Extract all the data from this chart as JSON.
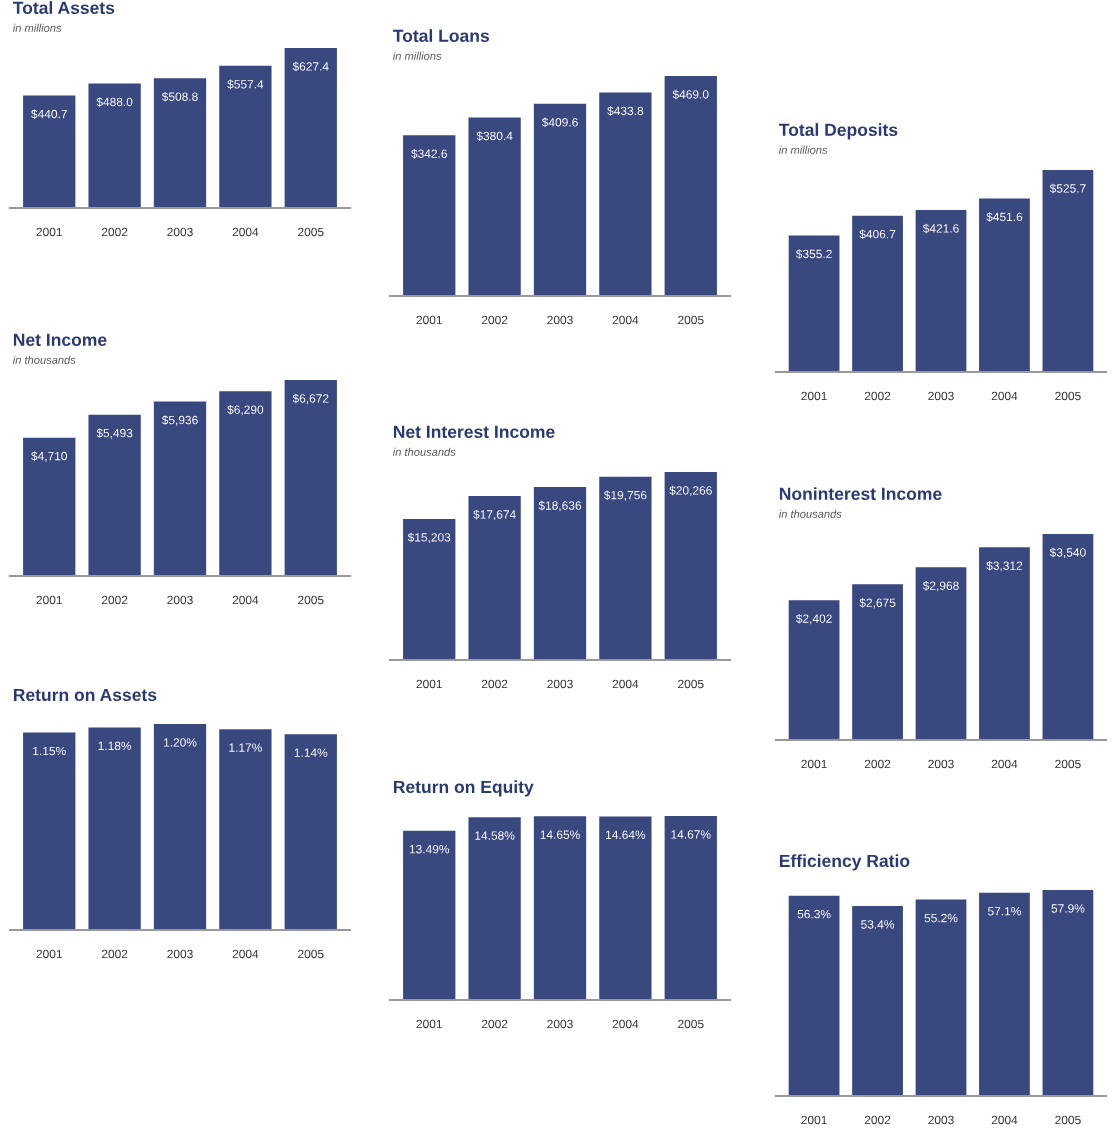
{
  "chart_data": [
    {
      "type": "bar",
      "title": "Total Assets",
      "subtitle": "in millions",
      "categories": [
        "2001",
        "2002",
        "2003",
        "2004",
        "2005"
      ],
      "values": [
        440.7,
        488.0,
        508.8,
        557.4,
        627.4
      ],
      "value_labels": [
        "$440.7",
        "$488.0",
        "$508.8",
        "$557.4",
        "$627.4"
      ],
      "color": "#3a4880"
    },
    {
      "type": "bar",
      "title": "Total Loans",
      "subtitle": "in millions",
      "categories": [
        "2001",
        "2002",
        "2003",
        "2004",
        "2005"
      ],
      "values": [
        342.6,
        380.4,
        409.6,
        433.8,
        469.0
      ],
      "value_labels": [
        "$342.6",
        "$380.4",
        "$409.6",
        "$433.8",
        "$469.0"
      ],
      "color": "#3a4880"
    },
    {
      "type": "bar",
      "title": "Total Deposits",
      "subtitle": "in millions",
      "categories": [
        "2001",
        "2002",
        "2003",
        "2004",
        "2005"
      ],
      "values": [
        355.2,
        406.7,
        421.6,
        451.6,
        525.7
      ],
      "value_labels": [
        "$355.2",
        "$406.7",
        "$421.6",
        "$451.6",
        "$525.7"
      ],
      "color": "#3a4880"
    },
    {
      "type": "bar",
      "title": "Net Income",
      "subtitle": "in thousands",
      "categories": [
        "2001",
        "2002",
        "2003",
        "2004",
        "2005"
      ],
      "values": [
        4710,
        5493,
        5936,
        6290,
        6672
      ],
      "value_labels": [
        "$4,710",
        "$5,493",
        "$5,936",
        "$6,290",
        "$6,672"
      ],
      "color": "#3a4880"
    },
    {
      "type": "bar",
      "title": "Net Interest Income",
      "subtitle": "in thousands",
      "categories": [
        "2001",
        "2002",
        "2003",
        "2004",
        "2005"
      ],
      "values": [
        15203,
        17674,
        18636,
        19756,
        20266
      ],
      "value_labels": [
        "$15,203",
        "$17,674",
        "$18,636",
        "$19,756",
        "$20,266"
      ],
      "color": "#3a4880"
    },
    {
      "type": "bar",
      "title": "Noninterest Income",
      "subtitle": "in thousands",
      "categories": [
        "2001",
        "2002",
        "2003",
        "2004",
        "2005"
      ],
      "values": [
        2402,
        2675,
        2968,
        3312,
        3540
      ],
      "value_labels": [
        "$2,402",
        "$2,675",
        "$2,968",
        "$3,312",
        "$3,540"
      ],
      "color": "#3a4880"
    },
    {
      "type": "bar",
      "title": "Return on Assets",
      "categories": [
        "2001",
        "2002",
        "2003",
        "2004",
        "2005"
      ],
      "values": [
        1.15,
        1.18,
        1.2,
        1.17,
        1.14
      ],
      "value_labels": [
        "1.15%",
        "1.18%",
        "1.20%",
        "1.17%",
        "1.14%"
      ],
      "color": "#3a4880"
    },
    {
      "type": "bar",
      "title": "Return on Equity",
      "categories": [
        "2001",
        "2002",
        "2003",
        "2004",
        "2005"
      ],
      "values": [
        13.49,
        14.58,
        14.65,
        14.64,
        14.67
      ],
      "value_labels": [
        "13.49%",
        "14.58%",
        "14.65%",
        "14.64%",
        "14.67%"
      ],
      "color": "#3a4880"
    },
    {
      "type": "bar",
      "title": "Efficiency Ratio",
      "categories": [
        "2001",
        "2002",
        "2003",
        "2004",
        "2005"
      ],
      "values": [
        56.3,
        53.4,
        55.2,
        57.1,
        57.9
      ],
      "value_labels": [
        "56.3%",
        "53.4%",
        "55.2%",
        "57.1%",
        "57.9%"
      ],
      "color": "#3a4880"
    }
  ]
}
